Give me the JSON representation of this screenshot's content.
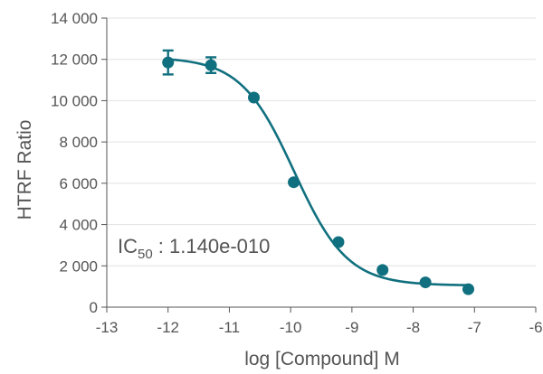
{
  "chart_data": {
    "type": "scatter",
    "title": "",
    "xlabel": "log [Compound] M",
    "ylabel": "HTRF Ratio",
    "xlim": [
      -13,
      -6
    ],
    "ylim": [
      0,
      14000
    ],
    "x_ticks": [
      -13,
      -12,
      -11,
      -10,
      -9,
      -8,
      -7,
      -6
    ],
    "x_tick_labels": [
      "-13",
      "-12",
      "-11",
      "-10",
      "-9",
      "-8",
      "-7",
      "-6"
    ],
    "y_ticks": [
      0,
      2000,
      4000,
      6000,
      8000,
      10000,
      12000,
      14000
    ],
    "y_tick_labels": [
      "0",
      "2 000",
      "4 000",
      "6 000",
      "8 000",
      "10 000",
      "12 000",
      "14 000"
    ],
    "grid": "horizontal",
    "color": "#11707f",
    "series": [
      {
        "x": [
          -12.0,
          -11.3,
          -10.6,
          -9.95,
          -9.22,
          -8.5,
          -7.8,
          -7.1
        ],
        "y": [
          11850,
          11720,
          10150,
          6050,
          3150,
          1800,
          1200,
          870
        ],
        "error": [
          580,
          380,
          0,
          0,
          0,
          0,
          0,
          0
        ]
      }
    ],
    "fit": {
      "model": "four-parameter logistic",
      "top": 12100,
      "bottom": 1050,
      "log_ic50": -9.943,
      "hill": 1.0
    },
    "annotation": {
      "ic_prefix": "IC",
      "ic_subscript": "50",
      "ic_value": " : 1.140e-010"
    }
  }
}
